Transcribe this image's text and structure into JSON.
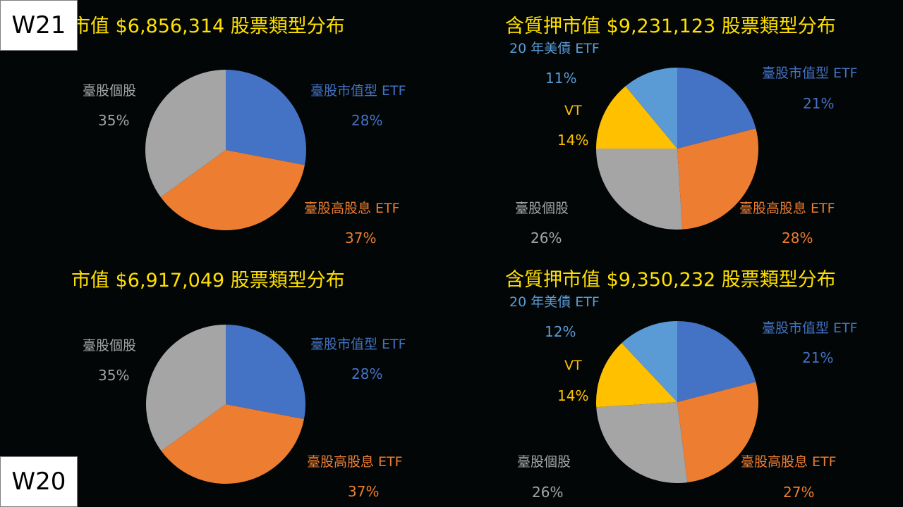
{
  "badges": {
    "top": "W21",
    "bottom": "W20"
  },
  "colors": {
    "background": "#020606",
    "title": "#FFE000",
    "tw_market_etf": "#4472C4",
    "tw_dividend_etf": "#ED7D31",
    "tw_stocks": "#A5A5A5",
    "vt": "#FFC000",
    "us_treasury_etf": "#5B9BD5"
  },
  "charts": {
    "w21_market": {
      "title": "市值 $6,856,314 股票類型分布",
      "slices": [
        {
          "label": "臺股市值型 ETF",
          "pct": "28%",
          "value": 28,
          "color": "#4472C4"
        },
        {
          "label": "臺股高股息 ETF",
          "pct": "37%",
          "value": 37,
          "color": "#ED7D31"
        },
        {
          "label": "臺股個股",
          "pct": "35%",
          "value": 35,
          "color": "#A5A5A5"
        }
      ]
    },
    "w21_pledge": {
      "title": "含質押市值 $9,231,123 股票類型分布",
      "slices": [
        {
          "label": "臺股市值型 ETF",
          "pct": "21%",
          "value": 21,
          "color": "#4472C4"
        },
        {
          "label": "臺股高股息 ETF",
          "pct": "28%",
          "value": 28,
          "color": "#ED7D31"
        },
        {
          "label": "臺股個股",
          "pct": "26%",
          "value": 26,
          "color": "#A5A5A5"
        },
        {
          "label": "VT",
          "pct": "14%",
          "value": 14,
          "color": "#FFC000"
        },
        {
          "label": "20 年美債 ETF",
          "pct": "11%",
          "value": 11,
          "color": "#5B9BD5"
        }
      ]
    },
    "w20_market": {
      "title": "市值 $6,917,049 股票類型分布",
      "slices": [
        {
          "label": "臺股市值型 ETF",
          "pct": "28%",
          "value": 28,
          "color": "#4472C4"
        },
        {
          "label": "臺股高股息 ETF",
          "pct": "37%",
          "value": 37,
          "color": "#ED7D31"
        },
        {
          "label": "臺股個股",
          "pct": "35%",
          "value": 35,
          "color": "#A5A5A5"
        }
      ]
    },
    "w20_pledge": {
      "title": "含質押市值 $9,350,232 股票類型分布",
      "slices": [
        {
          "label": "臺股市值型 ETF",
          "pct": "21%",
          "value": 21,
          "color": "#4472C4"
        },
        {
          "label": "臺股高股息 ETF",
          "pct": "27%",
          "value": 27,
          "color": "#ED7D31"
        },
        {
          "label": "臺股個股",
          "pct": "26%",
          "value": 26,
          "color": "#A5A5A5"
        },
        {
          "label": "VT",
          "pct": "14%",
          "value": 14,
          "color": "#FFC000"
        },
        {
          "label": "20 年美債 ETF",
          "pct": "12%",
          "value": 12,
          "color": "#5B9BD5"
        }
      ]
    }
  },
  "chart_data": [
    {
      "type": "pie",
      "title": "市值 $6,856,314 股票類型分布",
      "week": "W21",
      "categories": [
        "臺股市值型 ETF",
        "臺股高股息 ETF",
        "臺股個股"
      ],
      "values": [
        28,
        37,
        35
      ],
      "unit": "%"
    },
    {
      "type": "pie",
      "title": "含質押市值 $9,231,123 股票類型分布",
      "week": "W21",
      "categories": [
        "臺股市值型 ETF",
        "臺股高股息 ETF",
        "臺股個股",
        "VT",
        "20 年美債 ETF"
      ],
      "values": [
        21,
        28,
        26,
        14,
        11
      ],
      "unit": "%"
    },
    {
      "type": "pie",
      "title": "市值 $6,917,049 股票類型分布",
      "week": "W20",
      "categories": [
        "臺股市值型 ETF",
        "臺股高股息 ETF",
        "臺股個股"
      ],
      "values": [
        28,
        37,
        35
      ],
      "unit": "%"
    },
    {
      "type": "pie",
      "title": "含質押市值 $9,350,232 股票類型分布",
      "week": "W20",
      "categories": [
        "臺股市值型 ETF",
        "臺股高股息 ETF",
        "臺股個股",
        "VT",
        "20 年美債 ETF"
      ],
      "values": [
        21,
        27,
        26,
        14,
        12
      ],
      "unit": "%"
    }
  ]
}
